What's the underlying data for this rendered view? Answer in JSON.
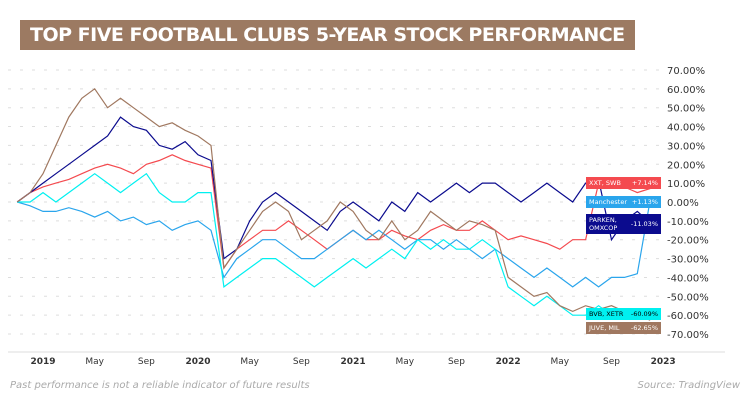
{
  "title": "TOP FIVE FOOTBALL CLUBS 5-YEAR STOCK PERFORMANCE",
  "footer_note": "Past performance is not a reliable indicator of future results",
  "source": "Source: TradingView",
  "chart_data": {
    "type": "line",
    "title": "TOP FIVE FOOTBALL CLUBS 5-YEAR STOCK PERFORMANCE",
    "ylim": [
      -70,
      70
    ],
    "y_ticks": [
      "70.00%",
      "60.00%",
      "50.00%",
      "40.00%",
      "30.00%",
      "20.00%",
      "10.00%",
      "0.00%",
      "-10.00%",
      "-20.00%",
      "-30.00%",
      "-40.00%",
      "-50.00%",
      "-60.00%",
      "-70.00%"
    ],
    "y_tick_values": [
      70,
      60,
      50,
      40,
      30,
      20,
      10,
      0,
      -10,
      -20,
      -30,
      -40,
      -50,
      -60,
      -70
    ],
    "x_ticks": [
      "2019",
      "May",
      "Sep",
      "2020",
      "May",
      "Sep",
      "2021",
      "May",
      "Sep",
      "2022",
      "May",
      "Sep",
      "2023"
    ],
    "grid": true,
    "x": [
      "2018-11",
      "2018-12",
      "2019-01",
      "2019-02",
      "2019-03",
      "2019-04",
      "2019-05",
      "2019-06",
      "2019-07",
      "2019-08",
      "2019-09",
      "2019-10",
      "2019-11",
      "2019-12",
      "2020-01",
      "2020-02",
      "2020-03",
      "2020-04",
      "2020-05",
      "2020-06",
      "2020-07",
      "2020-08",
      "2020-09",
      "2020-10",
      "2020-11",
      "2020-12",
      "2021-01",
      "2021-02",
      "2021-03",
      "2021-04",
      "2021-05",
      "2021-06",
      "2021-07",
      "2021-08",
      "2021-09",
      "2021-10",
      "2021-11",
      "2021-12",
      "2022-01",
      "2022-02",
      "2022-03",
      "2022-04",
      "2022-05",
      "2022-06",
      "2022-07",
      "2022-08",
      "2022-09",
      "2022-10",
      "2022-11",
      "2022-12"
    ],
    "series": [
      {
        "name": "XXT, SWB",
        "last": "+7.14%",
        "color": "#f44a4f",
        "values": [
          0,
          5,
          8,
          10,
          12,
          15,
          18,
          20,
          18,
          15,
          20,
          22,
          25,
          22,
          20,
          18,
          -35,
          -25,
          -20,
          -15,
          -15,
          -10,
          -15,
          -20,
          -25,
          -20,
          -15,
          -20,
          -20,
          -15,
          -18,
          -20,
          -15,
          -12,
          -15,
          -15,
          -10,
          -15,
          -20,
          -18,
          -20,
          -22,
          -25,
          -20,
          -20,
          10,
          10,
          8,
          5,
          7.14
        ]
      },
      {
        "name": "Manchester",
        "last": "+1.13%",
        "color": "#2aa5ec",
        "values": [
          0,
          -2,
          -5,
          -5,
          -3,
          -5,
          -8,
          -5,
          -10,
          -8,
          -12,
          -10,
          -15,
          -12,
          -10,
          -15,
          -40,
          -30,
          -25,
          -20,
          -20,
          -25,
          -30,
          -30,
          -25,
          -20,
          -15,
          -20,
          -15,
          -20,
          -25,
          -20,
          -20,
          -25,
          -20,
          -25,
          -30,
          -25,
          -30,
          -35,
          -40,
          -35,
          -40,
          -45,
          -40,
          -45,
          -40,
          -40,
          -38,
          1.13
        ]
      },
      {
        "name": "PARKEN, OMXCOP",
        "last": "-11.03%",
        "color": "#0b0b8e",
        "values": [
          0,
          5,
          10,
          15,
          20,
          25,
          30,
          35,
          45,
          40,
          38,
          30,
          28,
          32,
          25,
          22,
          -30,
          -25,
          -10,
          0,
          5,
          0,
          -5,
          -10,
          -15,
          -5,
          0,
          -5,
          -10,
          0,
          -5,
          5,
          0,
          5,
          10,
          5,
          10,
          10,
          5,
          0,
          5,
          10,
          5,
          0,
          10,
          12,
          -20,
          -10,
          -5,
          -11.03
        ]
      },
      {
        "name": "BVB, XETR",
        "last": "-60.09%",
        "color": "#00f0f0",
        "values": [
          0,
          0,
          5,
          0,
          5,
          10,
          15,
          10,
          5,
          10,
          15,
          5,
          0,
          0,
          5,
          5,
          -45,
          -40,
          -35,
          -30,
          -30,
          -35,
          -40,
          -45,
          -40,
          -35,
          -30,
          -35,
          -30,
          -25,
          -30,
          -20,
          -25,
          -20,
          -25,
          -25,
          -20,
          -25,
          -45,
          -50,
          -55,
          -50,
          -55,
          -60,
          -60,
          -55,
          -60,
          -60,
          -60,
          -60.09
        ]
      },
      {
        "name": "JUVE, MIL",
        "last": "-62.65%",
        "color": "#a07860",
        "values": [
          0,
          5,
          15,
          30,
          45,
          55,
          60,
          50,
          55,
          50,
          45,
          40,
          42,
          38,
          35,
          30,
          -35,
          -25,
          -15,
          -5,
          0,
          -5,
          -20,
          -15,
          -10,
          0,
          -5,
          -15,
          -20,
          -10,
          -20,
          -15,
          -5,
          -10,
          -15,
          -10,
          -12,
          -15,
          -40,
          -45,
          -50,
          -48,
          -55,
          -58,
          -55,
          -57,
          -55,
          -58,
          -60,
          -62.65
        ]
      }
    ]
  }
}
